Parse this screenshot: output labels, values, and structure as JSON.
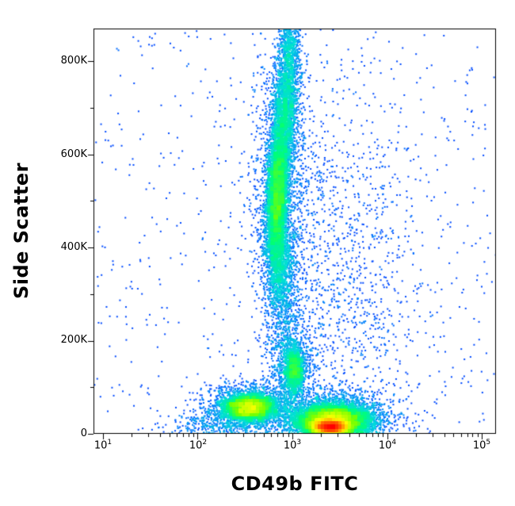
{
  "chart_data": {
    "type": "scatter",
    "subtype": "flow-cytometry-pseudocolor-density-dot-plot",
    "title": "",
    "xlabel": "CD49b FITC",
    "ylabel": "Side Scatter",
    "x_scale": "log",
    "x_log_range": [
      0.9,
      5.15
    ],
    "y_range": [
      0,
      870000
    ],
    "grid": false,
    "legend": "none",
    "background": "#ffffff",
    "x_ticks": [
      {
        "base": "10",
        "exp": "1",
        "value": 10
      },
      {
        "base": "10",
        "exp": "2",
        "value": 100
      },
      {
        "base": "10",
        "exp": "3",
        "value": 1000
      },
      {
        "base": "10",
        "exp": "4",
        "value": 10000
      },
      {
        "base": "10",
        "exp": "5",
        "value": 100000
      }
    ],
    "y_ticks": [
      {
        "label": "0",
        "value": 0
      },
      {
        "label": "200K",
        "value": 200000
      },
      {
        "label": "400K",
        "value": 400000
      },
      {
        "label": "600K",
        "value": 600000
      },
      {
        "label": "800K",
        "value": 800000
      }
    ],
    "y_minor_ticks": [
      100000,
      300000,
      500000,
      700000
    ],
    "colormap": [
      {
        "v": 0.0,
        "c": "#0014ff"
      },
      {
        "v": 0.2,
        "c": "#0078ff"
      },
      {
        "v": 0.4,
        "c": "#00dcdc"
      },
      {
        "v": 0.55,
        "c": "#00ff78"
      },
      {
        "v": 0.65,
        "c": "#78ff00"
      },
      {
        "v": 0.78,
        "c": "#ffff00"
      },
      {
        "v": 0.88,
        "c": "#ff8c00"
      },
      {
        "v": 1.0,
        "c": "#ff0000"
      }
    ],
    "clusters": [
      {
        "name": "ssc-high-main",
        "cx": 2.84,
        "cy": 510000,
        "sx": 0.055,
        "sy": 75000,
        "rho": 0.25,
        "count": 5200
      },
      {
        "name": "ssc-high-upper",
        "cx": 2.92,
        "cy": 690000,
        "sx": 0.07,
        "sy": 70000,
        "rho": 0.2,
        "count": 2200
      },
      {
        "name": "ssc-high-top-tail",
        "cx": 2.97,
        "cy": 830000,
        "sx": 0.055,
        "sy": 50000,
        "count": 700
      },
      {
        "name": "ssc-high-lower-tail",
        "cx": 2.86,
        "cy": 370000,
        "sx": 0.07,
        "sy": 55000,
        "count": 1100
      },
      {
        "name": "ssc-high-halo",
        "cx": 2.88,
        "cy": 520000,
        "sx": 0.16,
        "sy": 150000,
        "count": 1300
      },
      {
        "name": "mid-ssc-blob",
        "cx": 3.02,
        "cy": 140000,
        "sx": 0.05,
        "sy": 28000,
        "count": 1500
      },
      {
        "name": "mid-ssc-blob-halo",
        "cx": 3.02,
        "cy": 140000,
        "sx": 0.1,
        "sy": 50000,
        "count": 500
      },
      {
        "name": "cd49b-neg-low-ssc",
        "cx": 2.55,
        "cy": 57000,
        "sx": 0.13,
        "sy": 13000,
        "count": 5000
      },
      {
        "name": "cd49b-neg-halo",
        "cx": 2.55,
        "cy": 60000,
        "sx": 0.25,
        "sy": 25000,
        "count": 1300
      },
      {
        "name": "cd49b-pos-low-ssc",
        "cx": 3.42,
        "cy": 28000,
        "sx": 0.18,
        "sy": 16000,
        "count": 9000
      },
      {
        "name": "cd49b-pos-hot-core",
        "cx": 3.4,
        "cy": 15000,
        "sx": 0.09,
        "sy": 6500,
        "count": 8000
      },
      {
        "name": "cd49b-pos-halo",
        "cx": 3.45,
        "cy": 35000,
        "sx": 0.3,
        "sy": 26000,
        "count": 2200
      },
      {
        "name": "vertical-sparse-band",
        "cx": 2.9,
        "cy": 250000,
        "sx": 0.08,
        "sy": 120000,
        "count": 700
      },
      {
        "name": "right-sparse-spray",
        "cx": 3.45,
        "cy": 320000,
        "sx": 0.45,
        "sy": 210000,
        "count": 1400
      },
      {
        "name": "bottom-left-spray",
        "cx": 2.3,
        "cy": 18000,
        "sx": 0.3,
        "sy": 16000,
        "count": 450
      },
      {
        "name": "background-scatter",
        "uniform": true,
        "count": 650
      }
    ]
  }
}
